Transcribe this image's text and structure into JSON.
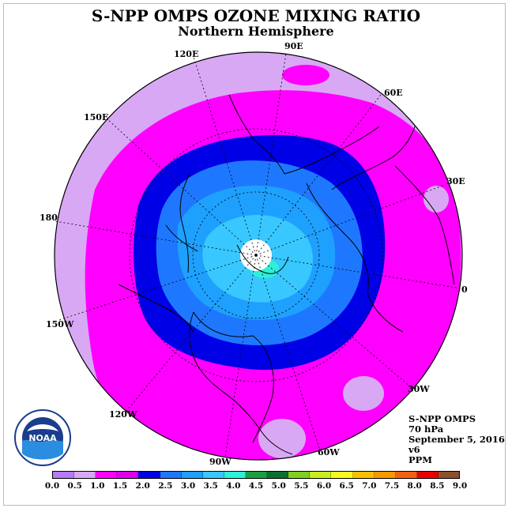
{
  "title": "S-NPP OMPS OZONE MIXING RATIO",
  "subtitle": "Northern Hemisphere",
  "longitude_labels": [
    {
      "text": "90E"
    },
    {
      "text": "60E"
    },
    {
      "text": "120E"
    },
    {
      "text": "150E"
    },
    {
      "text": "30E"
    },
    {
      "text": "180"
    },
    {
      "text": "0"
    },
    {
      "text": "150W"
    },
    {
      "text": "30W"
    },
    {
      "text": "120W"
    },
    {
      "text": "60W"
    },
    {
      "text": "90W"
    }
  ],
  "info": {
    "instrument": "S-NPP OMPS",
    "level": "70 hPa",
    "date": "September 5, 2016",
    "version": "v6",
    "units": "PPM"
  },
  "logo": {
    "text": "NOAA",
    "ring_text": "NATIONAL OCEANIC AND ATMOSPHERIC ADMINISTRATION · U.S. DEPARTMENT OF COMMERCE"
  },
  "colorbar": {
    "labels": [
      "0.0",
      "0.5",
      "1.0",
      "1.5",
      "2.0",
      "2.5",
      "3.0",
      "3.5",
      "4.0",
      "4.5",
      "5.0",
      "5.5",
      "6.0",
      "6.5",
      "7.0",
      "7.5",
      "8.0",
      "8.5",
      "9.0"
    ],
    "colors": [
      "#b57cf5",
      "#d9a8f5",
      "#ff00ff",
      "#dd00ee",
      "#0000e6",
      "#1e78ff",
      "#1ea0ff",
      "#38c8ff",
      "#2ef0d8",
      "#1aa040",
      "#0b7030",
      "#80d020",
      "#c8ee20",
      "#f8f820",
      "#f8c000",
      "#f89800",
      "#f86010",
      "#e80000",
      "#8c5030"
    ]
  },
  "map_legend_colors": {
    "level_0_5": "#d9a8f5",
    "level_1_0": "#ff00ff",
    "level_1_5": "#0000e6",
    "level_2_0": "#1e78ff",
    "level_2_5": "#1ea0ff",
    "level_3_0": "#38c8ff",
    "level_3_5": "#2ef0d8",
    "no_data": "#ffffff"
  }
}
